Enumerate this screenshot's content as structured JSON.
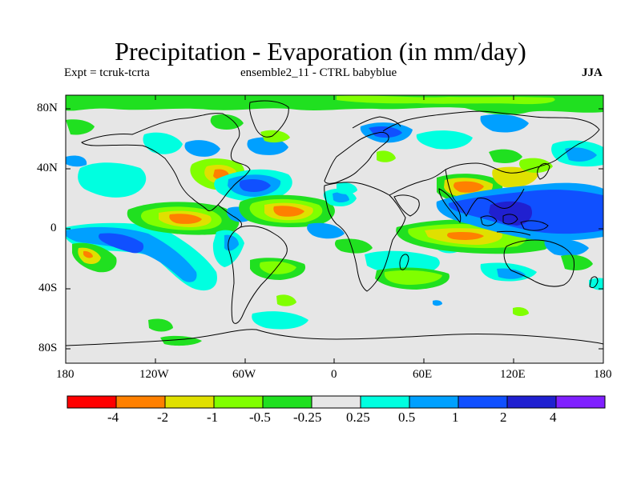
{
  "title": "Precipitation - Evaporation (in mm/day)",
  "subtitle_left": "Expt = tcruk-tcrta",
  "subtitle_center": "ensemble2_11 - CTRL babyblue",
  "season": "JJA",
  "lat_ticks": [
    "80N",
    "40N",
    "0",
    "40S",
    "80S"
  ],
  "lon_ticks": [
    "180",
    "120W",
    "60W",
    "0",
    "60E",
    "120E",
    "180"
  ],
  "colorbar": {
    "colors": [
      "#ff0000",
      "#ff8000",
      "#e0e000",
      "#80ff00",
      "#20e020",
      "#e6e6e6",
      "#00ffe0",
      "#00a0ff",
      "#1050ff",
      "#2020d0",
      "#8020ff"
    ],
    "labels": [
      "-4",
      "-2",
      "-1",
      "-0.5",
      "-0.25",
      "0.25",
      "0.5",
      "1",
      "2",
      "4"
    ]
  },
  "chart_data": {
    "type": "heatmap",
    "variable": "Precipitation - Evaporation (in mm/day)",
    "xlim": [
      -180,
      180
    ],
    "ylim": [
      -90,
      90
    ],
    "levels": [
      -4,
      -2,
      -1,
      -0.5,
      -0.25,
      0.25,
      0.5,
      1,
      2,
      4
    ],
    "background_value_range": [
      -0.25,
      0.25
    ]
  }
}
